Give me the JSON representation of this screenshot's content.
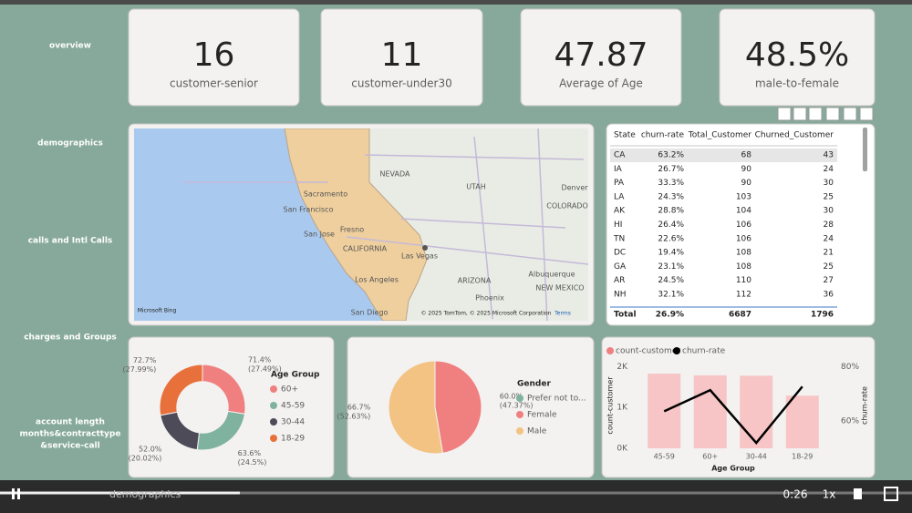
{
  "nav": [
    "overview",
    "demographics",
    "calls and Intl Calls",
    "charges and Groups",
    "account length",
    "months&contracttype",
    "&service-call"
  ],
  "kpis": [
    {
      "value": "16",
      "label": "customer-senior"
    },
    {
      "value": "11",
      "label": "customer-under30"
    },
    {
      "value": "47.87",
      "label": "Average of Age"
    },
    {
      "value": "48.5%",
      "label": "male-to-female"
    }
  ],
  "map": {
    "places": [
      "NEVADA",
      "UTAH",
      "Denver",
      "COLORADO",
      "Sacramento",
      "San Francisco",
      "San Jose",
      "Fresno",
      "CALIFORNIA",
      "Las Vegas",
      "ARIZONA",
      "Albuquerque",
      "NEW MEXICO",
      "Los Angeles",
      "Phoenix",
      "San Diego"
    ],
    "attribution": "© 2025 TomTom, © 2025 Microsoft Corporation",
    "terms": "Terms",
    "brand": "Microsoft Bing"
  },
  "table": {
    "header": [
      "State",
      "churn-rate",
      "Total_Customer",
      "Churned_Customer"
    ],
    "rows": [
      [
        "CA",
        "63.2%",
        68,
        43
      ],
      [
        "IA",
        "26.7%",
        90,
        24
      ],
      [
        "PA",
        "33.3%",
        90,
        30
      ],
      [
        "LA",
        "24.3%",
        103,
        25
      ],
      [
        "AK",
        "28.8%",
        104,
        30
      ],
      [
        "HI",
        "26.4%",
        106,
        28
      ],
      [
        "TN",
        "22.6%",
        106,
        24
      ],
      [
        "DC",
        "19.4%",
        108,
        21
      ],
      [
        "GA",
        "23.1%",
        108,
        25
      ],
      [
        "AR",
        "24.5%",
        110,
        27
      ],
      [
        "NH",
        "32.1%",
        112,
        36
      ]
    ],
    "total": [
      "Total",
      "26.9%",
      6687,
      1796
    ]
  },
  "chart_data": [
    {
      "type": "pie",
      "hole": true,
      "legend_title": "Age Group",
      "categories": [
        "60+",
        "45-59",
        "30-44",
        "18-29"
      ],
      "values": [
        71.4,
        63.6,
        52.0,
        72.7
      ],
      "value_labels": [
        "71.4%",
        "63.6%",
        "52.0%",
        "72.7%"
      ],
      "share_labels": [
        "(27.49%)",
        "(24.5%)",
        "(20.02%)",
        "(27.99%)"
      ],
      "colors": [
        "#f08080",
        "#7fb39f",
        "#4d4b58",
        "#e8703a"
      ]
    },
    {
      "type": "pie",
      "hole": false,
      "legend_title": "Gender",
      "categories": [
        "Prefer not to...",
        "Female",
        "Male"
      ],
      "values": [
        0,
        60.0,
        66.7
      ],
      "value_labels": [
        null,
        "60.0%",
        "66.7%"
      ],
      "share_labels": [
        null,
        "(47.37%)",
        "(52.63%)"
      ],
      "colors": [
        "#7fb39f",
        "#f08080",
        "#f3c384"
      ]
    },
    {
      "type": "combo",
      "x_label": "Age Group",
      "y_label": "count-customer",
      "y2_label": "churn-rate",
      "categories": [
        "45-59",
        "60+",
        "30-44",
        "18-29"
      ],
      "series": [
        {
          "name": "count-customer",
          "type": "bar",
          "color": "#f7c5c5",
          "legend_color": "#f08080",
          "values": [
            1830,
            1790,
            1780,
            1290
          ]
        },
        {
          "name": "churn-rate",
          "type": "line",
          "axis": "y2",
          "color": "#000000",
          "values": [
            63.6,
            71.4,
            52.0,
            72.7
          ]
        }
      ],
      "ylim": [
        0,
        2100
      ],
      "yticks": [
        {
          "value": 0,
          "label": "0K"
        },
        {
          "value": 1000,
          "label": "1K"
        },
        {
          "value": 2000,
          "label": "2K"
        }
      ],
      "y2lim": [
        50,
        81.5
      ],
      "y2ticks": [
        {
          "value": 60,
          "label": "60%"
        },
        {
          "value": 80,
          "label": "80%"
        }
      ]
    }
  ],
  "player": {
    "time": "0:26",
    "speed": "1x",
    "page": "demographics"
  }
}
